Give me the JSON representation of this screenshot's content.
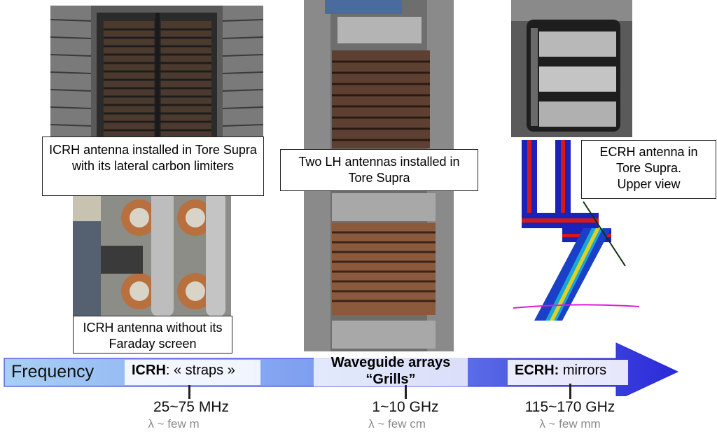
{
  "captions": {
    "icrh_installed": "ICRH antenna installed in Tore Supra with its lateral carbon limiters",
    "icrh_without_screen": "ICRH antenna without its Faraday screen",
    "lh_installed": "Two LH antennas installed in Tore Supra",
    "ecrh": "ECRH antenna in Tore Supra. Upper view"
  },
  "scale": {
    "axis_label": "Frequency",
    "icrh_band": {
      "bold": "ICRH",
      "rest": ": « straps »"
    },
    "lh_band": {
      "line1": "Waveguide arrays",
      "line2": "“Grills”"
    },
    "ecrh_band": {
      "bold": "ECRH:",
      "rest": " mirrors"
    },
    "ticks": [
      {
        "frequency": "25~75 MHz",
        "wavelength": "λ ~ few m"
      },
      {
        "frequency": "1~10 GHz",
        "wavelength": "λ ~ few cm"
      },
      {
        "frequency": "115~170 GHz",
        "wavelength": "λ ~ few mm"
      }
    ]
  },
  "colors": {
    "arrow_start": "#a8d0f5",
    "arrow_end": "#2a2ad8",
    "caption_border": "#222222"
  }
}
